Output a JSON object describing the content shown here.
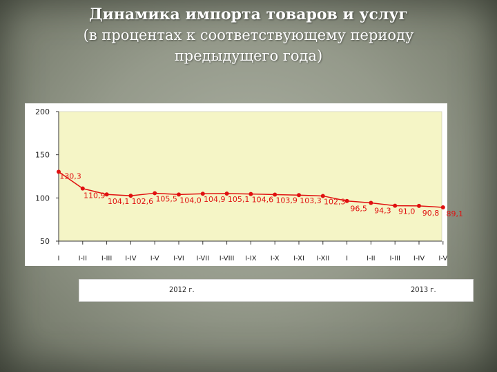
{
  "title": {
    "line1": "Динамика импорта товаров и услуг",
    "line2": "(в процентах к соответствующему периоду",
    "line3": "предыдущего года)"
  },
  "colors": {
    "plot_bg": "#f5f5c6",
    "line": "#e01010",
    "label": "#e01010"
  },
  "chart_data": {
    "type": "line",
    "categories": [
      "I",
      "I-II",
      "I-III",
      "I-IV",
      "I-V",
      "I-VI",
      "I-VII",
      "I-VIII",
      "I-IX",
      "I-X",
      "I-XI",
      "I-XII",
      "I",
      "I-II",
      "I-III",
      "I-IV",
      "I-V"
    ],
    "series": [
      {
        "values": [
          130.3,
          110.9,
          104.1,
          102.6,
          105.5,
          104.0,
          104.9,
          105.1,
          104.6,
          103.9,
          103.3,
          102.3,
          96.5,
          94.3,
          91.0,
          90.8,
          89.1
        ],
        "labels": [
          "130,3",
          "110,9",
          "104,1",
          "102,6",
          "105,5",
          "104,0",
          "104,9",
          "105,1",
          "104,6",
          "103,9",
          "103,3",
          "102,3",
          "96,5",
          "94,3",
          "91,0",
          "90,8",
          "89,1"
        ]
      }
    ],
    "ylim": [
      50,
      200
    ],
    "yticks": [
      50,
      100,
      150,
      200
    ],
    "year_groups": [
      "2012 г.",
      "2013 г."
    ],
    "grid": false,
    "legend": "none"
  }
}
